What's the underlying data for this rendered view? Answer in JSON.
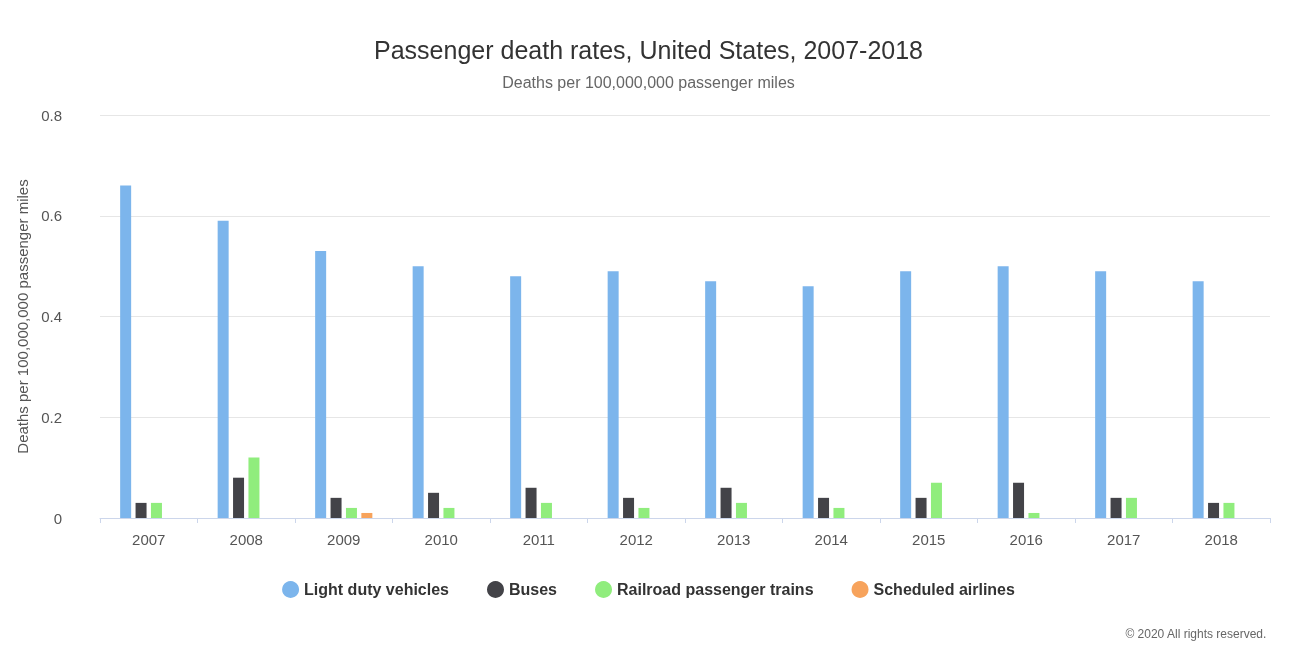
{
  "chart_data": {
    "type": "bar",
    "title": "Passenger death rates, United States, 2007-2018",
    "subtitle": "Deaths per 100,000,000 passenger miles",
    "ylabel": "Deaths per 100,000,000 passenger miles",
    "categories": [
      "2007",
      "2008",
      "2009",
      "2010",
      "2011",
      "2012",
      "2013",
      "2014",
      "2015",
      "2016",
      "2017",
      "2018"
    ],
    "series": [
      {
        "name": "Light duty vehicles",
        "color": "#7cb5ec",
        "values": [
          0.66,
          0.59,
          0.53,
          0.5,
          0.48,
          0.49,
          0.47,
          0.46,
          0.49,
          0.5,
          0.49,
          0.47
        ]
      },
      {
        "name": "Buses",
        "color": "#434348",
        "values": [
          0.03,
          0.08,
          0.04,
          0.05,
          0.06,
          0.04,
          0.06,
          0.04,
          0.04,
          0.07,
          0.04,
          0.03
        ]
      },
      {
        "name": "Railroad passenger trains",
        "color": "#90ed7d",
        "values": [
          0.03,
          0.12,
          0.02,
          0.02,
          0.03,
          0.02,
          0.03,
          0.02,
          0.07,
          0.01,
          0.04,
          0.03
        ]
      },
      {
        "name": "Scheduled airlines",
        "color": "#f7a35c",
        "values": [
          0,
          0,
          0.01,
          0,
          0,
          0,
          0,
          0,
          0,
          0,
          0,
          0
        ]
      }
    ],
    "ylim": [
      0,
      0.8
    ],
    "yticks": [
      0,
      0.2,
      0.4,
      0.6,
      0.8
    ],
    "grid": "y",
    "legend": "bottom",
    "annotations": [
      "© 2020 All rights reserved."
    ]
  }
}
